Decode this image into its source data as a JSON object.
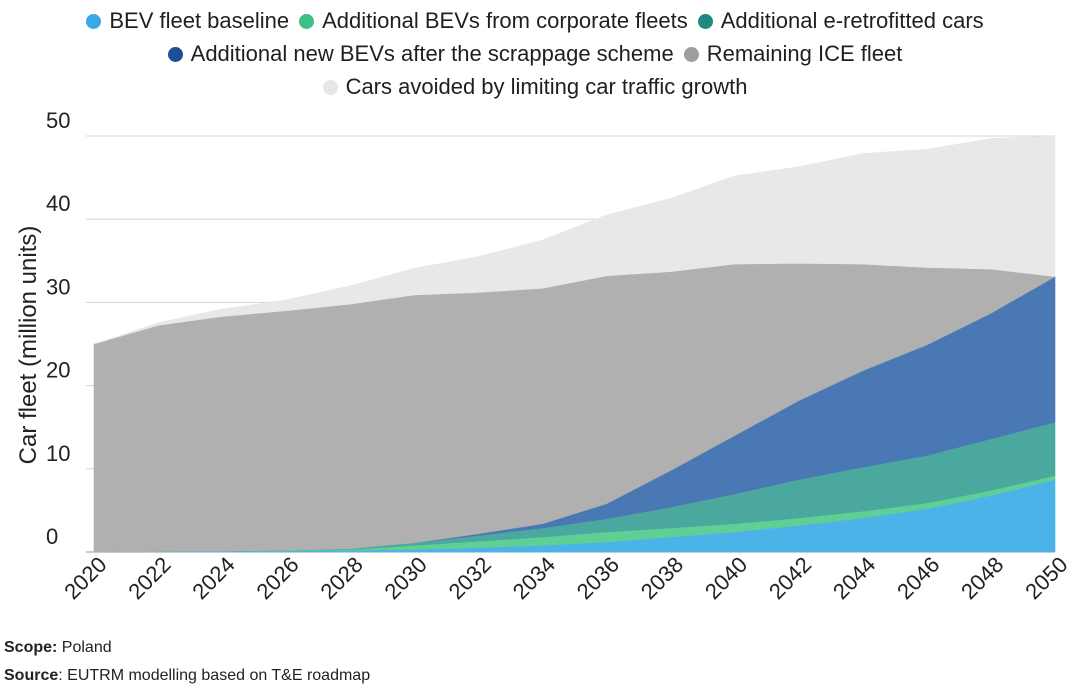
{
  "chart_data": {
    "type": "area",
    "stacked": true,
    "ylabel": "Car fleet (million units)",
    "xlabel": "",
    "ylim": [
      0,
      50
    ],
    "yticks": [
      0,
      10,
      20,
      30,
      40,
      50
    ],
    "grid": "horizontal",
    "legend_position": "top-center",
    "x": [
      2020,
      2022,
      2024,
      2026,
      2028,
      2030,
      2032,
      2034,
      2036,
      2038,
      2040,
      2042,
      2044,
      2046,
      2048,
      2050
    ],
    "x_tick_labels": [
      "2020",
      "2022",
      "2024",
      "2026",
      "2028",
      "2030",
      "2032",
      "2034",
      "2036",
      "2038",
      "2040",
      "2042",
      "2044",
      "2046",
      "2048",
      "2050"
    ],
    "series": [
      {
        "name": "BEV fleet baseline",
        "color": "#4bb3e8",
        "values": [
          0,
          0.05,
          0.1,
          0.15,
          0.2,
          0.3,
          0.5,
          0.8,
          1.2,
          1.8,
          2.4,
          3.2,
          4.1,
          5.2,
          6.8,
          8.7
        ]
      },
      {
        "name": "Additional BEVs from corporate fleets",
        "color": "#5fcf95",
        "values": [
          0,
          0,
          0,
          0.05,
          0.1,
          0.5,
          0.8,
          1.0,
          1.2,
          1.1,
          1.0,
          0.9,
          0.8,
          0.7,
          0.6,
          0.5
        ]
      },
      {
        "name": "Additional e-retrofitted cars",
        "color": "#4aa89e",
        "values": [
          0,
          0,
          0,
          0,
          0.1,
          0.3,
          0.7,
          1.1,
          1.6,
          2.5,
          3.6,
          4.6,
          5.3,
          5.7,
          6.2,
          6.4
        ]
      },
      {
        "name": "Additional new BEVs after the scrappage scheme",
        "color": "#4a78b4",
        "values": [
          0,
          0,
          0,
          0,
          0,
          0,
          0.2,
          0.5,
          1.8,
          4.4,
          7.0,
          9.5,
          11.6,
          13.3,
          15.1,
          17.5
        ]
      },
      {
        "name": "Remaining ICE fleet",
        "color": "#b0b0b0",
        "values": [
          25.0,
          27.2,
          28.2,
          28.8,
          29.4,
          29.8,
          29.0,
          28.3,
          27.4,
          23.9,
          20.6,
          16.5,
          12.8,
          9.3,
          5.3,
          0
        ]
      },
      {
        "name": "Cars avoided by limiting car traffic growth",
        "color": "#e8e8e8",
        "values": [
          0,
          0.3,
          0.9,
          1.3,
          2.2,
          3.2,
          4.3,
          5.8,
          7.3,
          8.8,
          10.6,
          11.6,
          13.3,
          14.2,
          15.7,
          16.9
        ]
      }
    ]
  },
  "legend": {
    "rows": [
      [
        {
          "label": "BEV fleet baseline",
          "color": "#3aa8e6"
        },
        {
          "label": "Additional BEVs from corporate fleets",
          "color": "#3dbf86"
        },
        {
          "label": "Additional e-retrofitted cars",
          "color": "#1e8a80"
        }
      ],
      [
        {
          "label": "Additional new BEVs after the scrappage scheme",
          "color": "#1d4e96"
        },
        {
          "label": "Remaining ICE fleet",
          "color": "#9e9e9e"
        }
      ],
      [
        {
          "label": "Cars avoided by limiting car traffic growth",
          "color": "#e6e6e6"
        }
      ]
    ]
  },
  "footnotes": {
    "scope_label": "Scope:",
    "scope_value": " Poland",
    "source_label": "Source",
    "source_value": ": EUTRM modelling based on T&E roadmap"
  }
}
